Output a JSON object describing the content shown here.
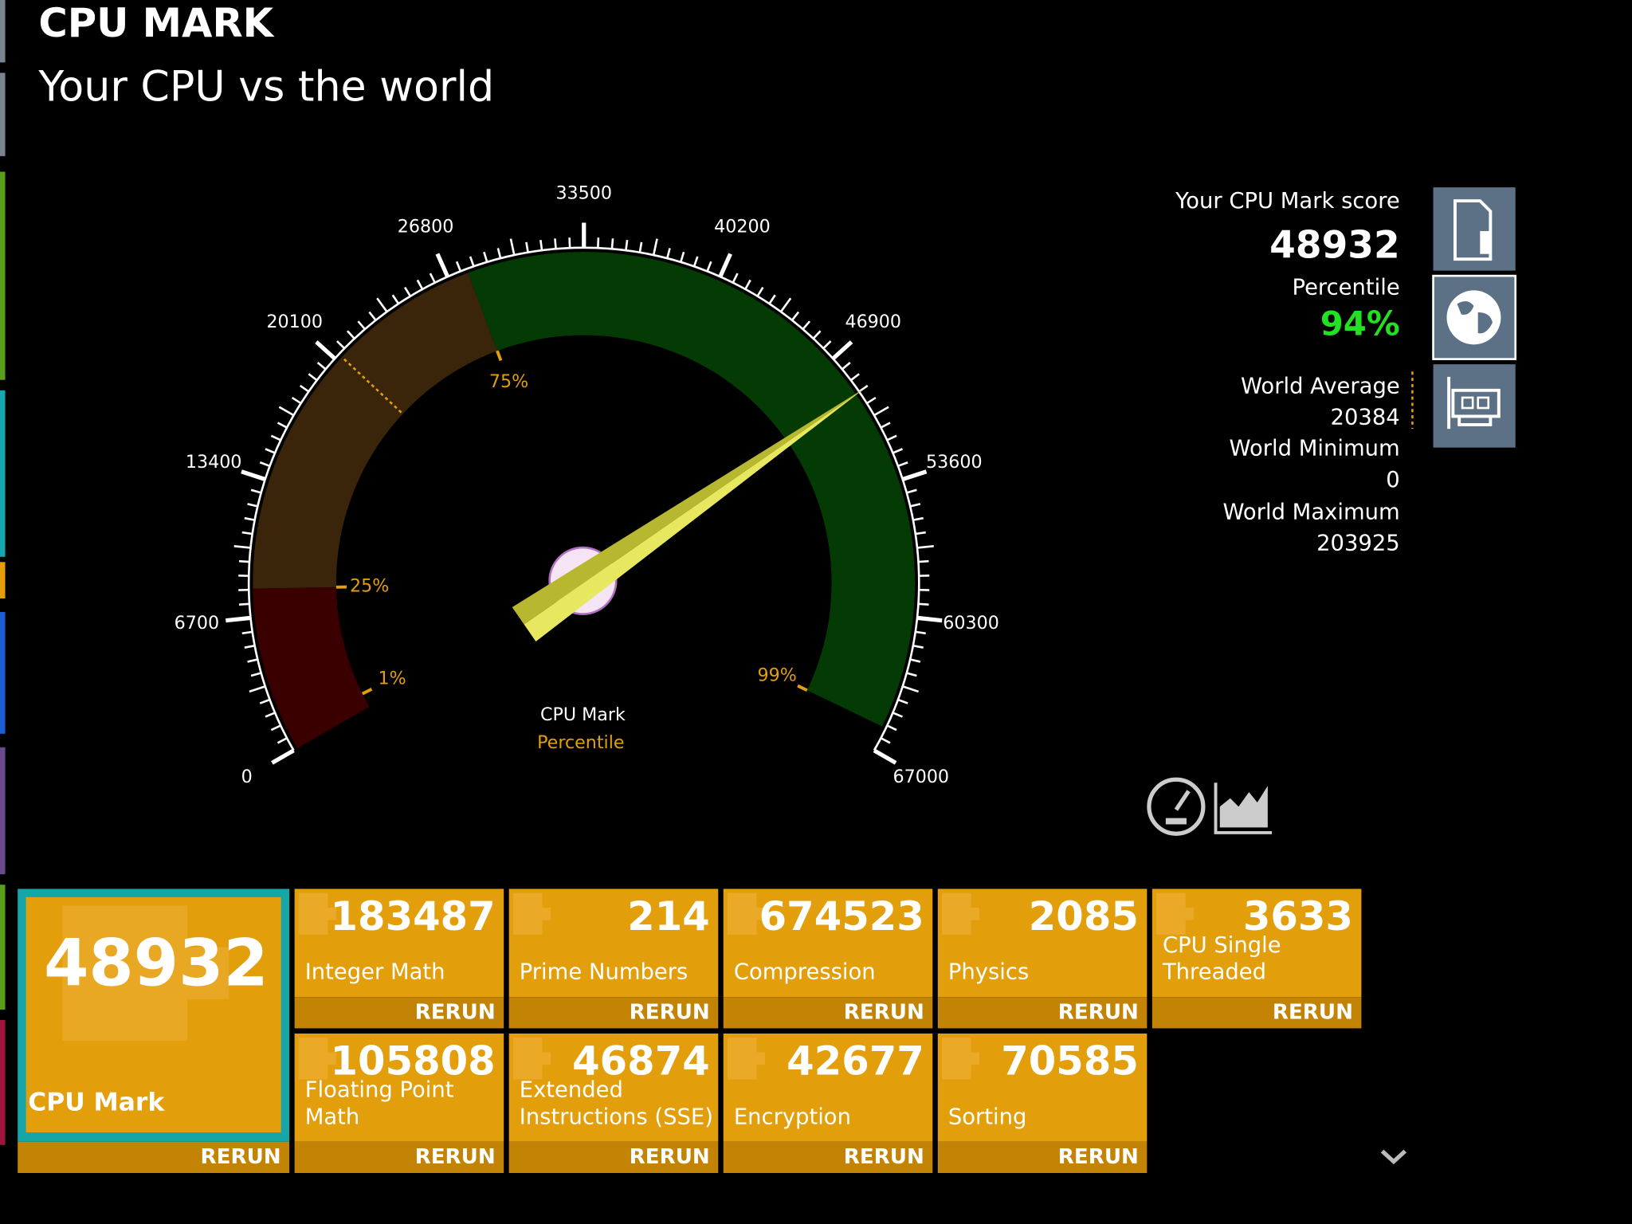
{
  "header": {
    "title": "CPU MARK",
    "subtitle": "Your CPU vs the world"
  },
  "gauge": {
    "min": 0,
    "max": 67000,
    "ticks": [
      0,
      6700,
      13400,
      20100,
      26800,
      33500,
      40200,
      46900,
      53600,
      60300,
      67000
    ],
    "percentile_markers": [
      {
        "label": "1%",
        "value": 950
      },
      {
        "label": "25%",
        "value": 8100
      },
      {
        "label": "75%",
        "value": 27780
      },
      {
        "label": "99%",
        "value": 65800
      }
    ],
    "band_colors": [
      "#3a0000",
      "#3b250a",
      "#043b04"
    ],
    "axis_label": "CPU Mark",
    "percentile_label": "Percentile"
  },
  "panel": {
    "score_label": "Your CPU Mark score",
    "score": 48932,
    "percentile_label": "Percentile",
    "percentile": "94%",
    "world_average_label": "World Average",
    "world_average": 20384,
    "world_minimum_label": "World Minimum",
    "world_minimum": 0,
    "world_maximum_label": "World Maximum",
    "world_maximum": 203925
  },
  "main_tile": {
    "value": 48932,
    "label": "CPU Mark",
    "rerun": "RERUN"
  },
  "tiles": [
    {
      "value": 183487,
      "label": [
        "Integer Math"
      ],
      "rerun": "RERUN"
    },
    {
      "value": 214,
      "label": [
        "Prime Numbers"
      ],
      "rerun": "RERUN"
    },
    {
      "value": 674523,
      "label": [
        "Compression"
      ],
      "rerun": "RERUN"
    },
    {
      "value": 2085,
      "label": [
        "Physics"
      ],
      "rerun": "RERUN"
    },
    {
      "value": 3633,
      "label": [
        "CPU Single",
        "Threaded"
      ],
      "rerun": "RERUN"
    },
    {
      "value": 105808,
      "label": [
        "Floating Point",
        "Math"
      ],
      "rerun": "RERUN"
    },
    {
      "value": 46874,
      "label": [
        "Extended",
        "Instructions (SSE)"
      ],
      "rerun": "RERUN"
    },
    {
      "value": 42677,
      "label": [
        "Encryption"
      ],
      "rerun": "RERUN"
    },
    {
      "value": 70585,
      "label": [
        "Sorting"
      ],
      "rerun": "RERUN"
    }
  ]
}
